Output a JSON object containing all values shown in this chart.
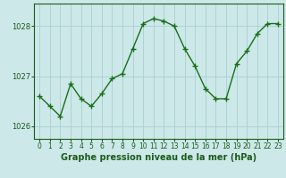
{
  "x": [
    0,
    1,
    2,
    3,
    4,
    5,
    6,
    7,
    8,
    9,
    10,
    11,
    12,
    13,
    14,
    15,
    16,
    17,
    18,
    19,
    20,
    21,
    22,
    23
  ],
  "y": [
    1026.6,
    1026.4,
    1026.2,
    1026.85,
    1026.55,
    1026.4,
    1026.65,
    1026.95,
    1027.05,
    1027.55,
    1028.05,
    1028.15,
    1028.1,
    1028.0,
    1027.55,
    1027.2,
    1026.75,
    1026.55,
    1026.55,
    1027.25,
    1027.5,
    1027.85,
    1028.05,
    1028.05
  ],
  "line_color": "#1a6e1a",
  "marker": "+",
  "marker_size": 4,
  "bg_color": "#cce8e8",
  "grid_color": "#aad0d0",
  "axis_color": "#1a5c1a",
  "xlabel": "Graphe pression niveau de la mer (hPa)",
  "xlabel_fontsize": 7,
  "ylim": [
    1025.75,
    1028.45
  ],
  "yticks": [
    1026,
    1027,
    1028
  ],
  "xticks": [
    0,
    1,
    2,
    3,
    4,
    5,
    6,
    7,
    8,
    9,
    10,
    11,
    12,
    13,
    14,
    15,
    16,
    17,
    18,
    19,
    20,
    21,
    22,
    23
  ],
  "tick_fontsize": 5.5,
  "linewidth": 1.0
}
